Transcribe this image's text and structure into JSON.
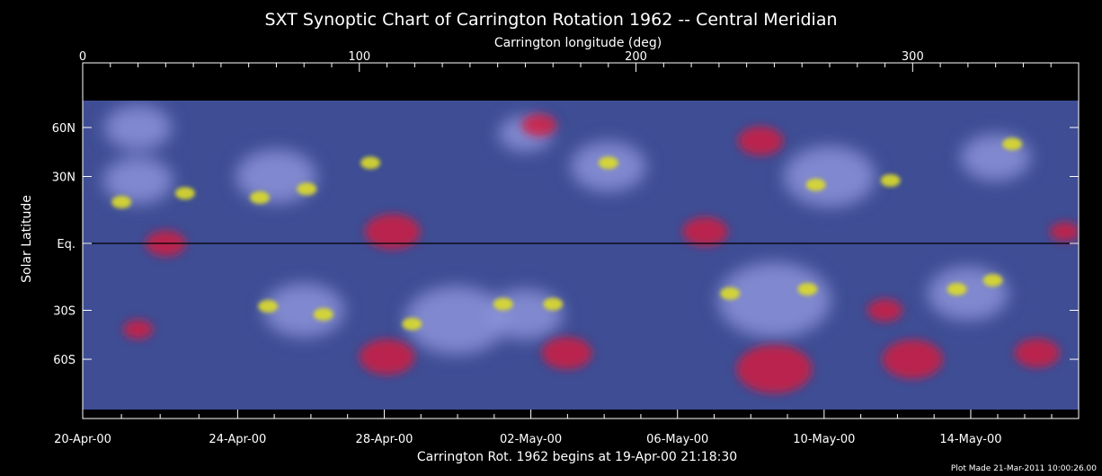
{
  "chart_data": {
    "type": "heatmap",
    "title": "SXT Synoptic Chart of Carrington Rotation 1962 -- Central Meridian",
    "top_axis": {
      "label": "Carrington longitude (deg)",
      "range": [
        0,
        360
      ],
      "ticks": [
        {
          "value": 0,
          "label": "0"
        },
        {
          "value": 100,
          "label": "100"
        },
        {
          "value": 200,
          "label": "200"
        },
        {
          "value": 300,
          "label": "300"
        }
      ]
    },
    "y_axis": {
      "label": "Solar Latitude",
      "scale": "sine",
      "range": [
        -90,
        90
      ],
      "ticks": [
        {
          "value": 60,
          "label": "60N"
        },
        {
          "value": 30,
          "label": "30N"
        },
        {
          "value": 0,
          "label": "Eq."
        },
        {
          "value": -30,
          "label": "30S"
        },
        {
          "value": -60,
          "label": "60S"
        }
      ]
    },
    "bottom_axis": {
      "label": "Carrington Rot. 1962 begins at 19-Apr-00 21:18:30",
      "ticks": [
        {
          "value": 360,
          "label": ""
        },
        {
          "value": 321,
          "label": "14-May-00"
        },
        {
          "value": 268,
          "label": "10-May-00"
        },
        {
          "value": 215,
          "label": "06-May-00"
        },
        {
          "value": 162,
          "label": "02-May-00"
        },
        {
          "value": 109,
          "label": "28-Apr-00"
        },
        {
          "value": 56,
          "label": "24-Apr-00"
        },
        {
          "value": 0,
          "label": "20-Apr-00"
        }
      ]
    },
    "equator_line": true,
    "footer": "Plot Made 21-Mar-2011 10:00:26.00",
    "colors": {
      "background": "#000000",
      "quiet": "#3e4d94",
      "loops": "#8c93d9",
      "bright": "#dcdc2a",
      "hole": "#d8183c"
    },
    "bright_regions": [
      {
        "lon": 14,
        "lat": 18,
        "kind": "bright"
      },
      {
        "lon": 37,
        "lat": 22,
        "kind": "bright"
      },
      {
        "lon": 64,
        "lat": 20,
        "kind": "bright"
      },
      {
        "lon": 81,
        "lat": 24,
        "kind": "bright"
      },
      {
        "lon": 104,
        "lat": 37,
        "kind": "bright"
      },
      {
        "lon": 190,
        "lat": 37,
        "kind": "bright"
      },
      {
        "lon": 265,
        "lat": 26,
        "kind": "bright"
      },
      {
        "lon": 292,
        "lat": 28,
        "kind": "bright"
      },
      {
        "lon": 336,
        "lat": 48,
        "kind": "bright"
      },
      {
        "lon": 67,
        "lat": -28,
        "kind": "bright"
      },
      {
        "lon": 87,
        "lat": -32,
        "kind": "bright"
      },
      {
        "lon": 119,
        "lat": -37,
        "kind": "bright"
      },
      {
        "lon": 152,
        "lat": -27,
        "kind": "bright"
      },
      {
        "lon": 170,
        "lat": -27,
        "kind": "bright"
      },
      {
        "lon": 234,
        "lat": -22,
        "kind": "bright"
      },
      {
        "lon": 262,
        "lat": -20,
        "kind": "bright"
      },
      {
        "lon": 316,
        "lat": -20,
        "kind": "bright"
      },
      {
        "lon": 329,
        "lat": -16,
        "kind": "bright"
      }
    ],
    "loop_regions": [
      {
        "lon": 20,
        "lat": 28,
        "r": 26
      },
      {
        "lon": 70,
        "lat": 30,
        "r": 30
      },
      {
        "lon": 190,
        "lat": 35,
        "r": 28
      },
      {
        "lon": 270,
        "lat": 30,
        "r": 34
      },
      {
        "lon": 330,
        "lat": 40,
        "r": 26
      },
      {
        "lon": 80,
        "lat": -30,
        "r": 30
      },
      {
        "lon": 135,
        "lat": -35,
        "r": 38
      },
      {
        "lon": 160,
        "lat": -32,
        "r": 28
      },
      {
        "lon": 250,
        "lat": -25,
        "r": 42
      },
      {
        "lon": 320,
        "lat": -22,
        "r": 30
      },
      {
        "lon": 160,
        "lat": 55,
        "r": 20
      },
      {
        "lon": 20,
        "lat": 60,
        "r": 25
      }
    ],
    "hole_regions": [
      {
        "lon": 112,
        "lat": 5,
        "r": 22
      },
      {
        "lon": 165,
        "lat": 62,
        "r": 14
      },
      {
        "lon": 245,
        "lat": 50,
        "r": 18
      },
      {
        "lon": 225,
        "lat": 5,
        "r": 18
      },
      {
        "lon": 30,
        "lat": 0,
        "r": 16
      },
      {
        "lon": 20,
        "lat": -40,
        "r": 12
      },
      {
        "lon": 110,
        "lat": -58,
        "r": 22
      },
      {
        "lon": 175,
        "lat": -55,
        "r": 20
      },
      {
        "lon": 250,
        "lat": -70,
        "r": 30
      },
      {
        "lon": 300,
        "lat": -60,
        "r": 24
      },
      {
        "lon": 345,
        "lat": -55,
        "r": 18
      },
      {
        "lon": 290,
        "lat": -30,
        "r": 14
      },
      {
        "lon": 355,
        "lat": 5,
        "r": 12
      }
    ]
  }
}
